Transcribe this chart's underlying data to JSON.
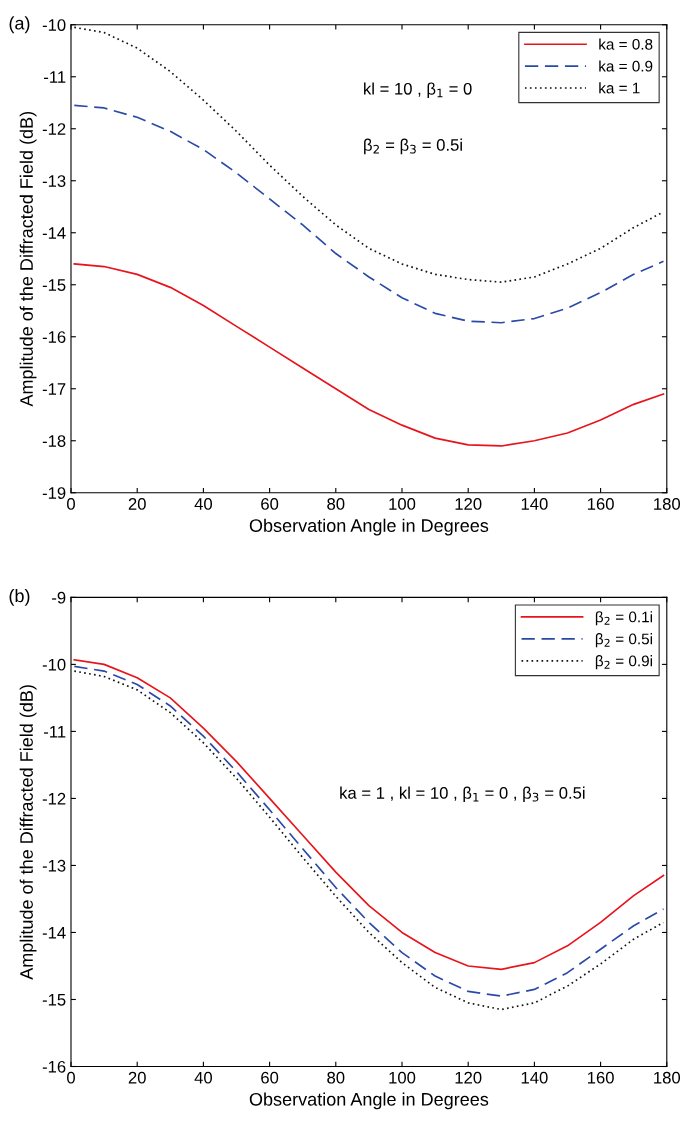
{
  "chart_data": [
    {
      "type": "line",
      "title": "(a)",
      "xlabel": "Observation Angle in Degrees",
      "ylabel": "Amplitude of the Diffracted Field (dB)",
      "x": [
        1,
        10,
        20,
        30,
        40,
        50,
        60,
        70,
        80,
        90,
        100,
        110,
        120,
        130,
        140,
        150,
        160,
        170,
        179
      ],
      "series": [
        {
          "name": "ka = 0.8",
          "color": "#e8141c",
          "line_style": "solid",
          "values": [
            -14.6,
            -14.65,
            -14.8,
            -15.05,
            -15.4,
            -15.8,
            -16.2,
            -16.6,
            -17.0,
            -17.4,
            -17.7,
            -17.95,
            -18.08,
            -18.1,
            -18.0,
            -17.85,
            -17.6,
            -17.3,
            -17.1
          ]
        },
        {
          "name": "ka = 0.9",
          "color": "#2a4aa8",
          "line_style": "dashed",
          "values": [
            -11.55,
            -11.6,
            -11.78,
            -12.05,
            -12.4,
            -12.85,
            -13.35,
            -13.85,
            -14.4,
            -14.85,
            -15.25,
            -15.55,
            -15.7,
            -15.73,
            -15.65,
            -15.45,
            -15.15,
            -14.8,
            -14.55
          ]
        },
        {
          "name": "ka = 1",
          "color": "#111111",
          "line_style": "dotted",
          "values": [
            -10.05,
            -10.15,
            -10.45,
            -10.9,
            -11.45,
            -12.05,
            -12.7,
            -13.3,
            -13.85,
            -14.3,
            -14.6,
            -14.8,
            -14.9,
            -14.95,
            -14.85,
            -14.6,
            -14.3,
            -13.9,
            -13.6
          ]
        }
      ],
      "annotations": [
        "kl = 10 , β$_{1}$ = 0",
        "β$_{2}$ = β$_{3}$ = 0.5i"
      ],
      "xlim": [
        0,
        180
      ],
      "xticks": [
        0,
        20,
        40,
        60,
        80,
        100,
        120,
        140,
        160,
        180
      ],
      "ylim": [
        -19,
        -10
      ],
      "yticks": [
        -19,
        -18,
        -17,
        -16,
        -15,
        -14,
        -13,
        -12,
        -11,
        -10
      ],
      "legend": "top right",
      "grid": false
    },
    {
      "type": "line",
      "title": "(b)",
      "xlabel": "Observation Angle in Degrees",
      "ylabel": "Amplitude of the Diffracted Field (dB)",
      "x": [
        1,
        10,
        20,
        30,
        40,
        50,
        60,
        70,
        80,
        90,
        100,
        110,
        120,
        130,
        140,
        150,
        160,
        170,
        179
      ],
      "series": [
        {
          "name": "β$_{2}$ = 0.1i",
          "color": "#e8141c",
          "line_style": "solid",
          "values": [
            -9.93,
            -10.0,
            -10.2,
            -10.5,
            -10.95,
            -11.45,
            -12.0,
            -12.55,
            -13.1,
            -13.6,
            -14.0,
            -14.3,
            -14.5,
            -14.55,
            -14.45,
            -14.2,
            -13.85,
            -13.45,
            -13.15
          ]
        },
        {
          "name": "β$_{2}$ = 0.5i",
          "color": "#2a4aa8",
          "line_style": "dashed",
          "values": [
            -10.03,
            -10.1,
            -10.3,
            -10.62,
            -11.07,
            -11.6,
            -12.17,
            -12.75,
            -13.33,
            -13.85,
            -14.3,
            -14.65,
            -14.88,
            -14.95,
            -14.85,
            -14.6,
            -14.25,
            -13.9,
            -13.65
          ]
        },
        {
          "name": "β$_{2}$ = 0.9i",
          "color": "#111111",
          "line_style": "dotted",
          "values": [
            -10.1,
            -10.18,
            -10.38,
            -10.72,
            -11.17,
            -11.7,
            -12.28,
            -12.88,
            -13.46,
            -14.0,
            -14.45,
            -14.82,
            -15.05,
            -15.15,
            -15.05,
            -14.8,
            -14.47,
            -14.1,
            -13.85
          ]
        }
      ],
      "annotations": [
        "ka = 1 , kl = 10 , β$_{1}$ = 0 , β$_{3}$ = 0.5i"
      ],
      "xlim": [
        0,
        180
      ],
      "xticks": [
        0,
        20,
        40,
        60,
        80,
        100,
        120,
        140,
        160,
        180
      ],
      "ylim": [
        -16,
        -9
      ],
      "yticks": [
        -16,
        -15,
        -14,
        -13,
        -12,
        -11,
        -10,
        -9
      ],
      "legend": "top right",
      "grid": false
    }
  ]
}
